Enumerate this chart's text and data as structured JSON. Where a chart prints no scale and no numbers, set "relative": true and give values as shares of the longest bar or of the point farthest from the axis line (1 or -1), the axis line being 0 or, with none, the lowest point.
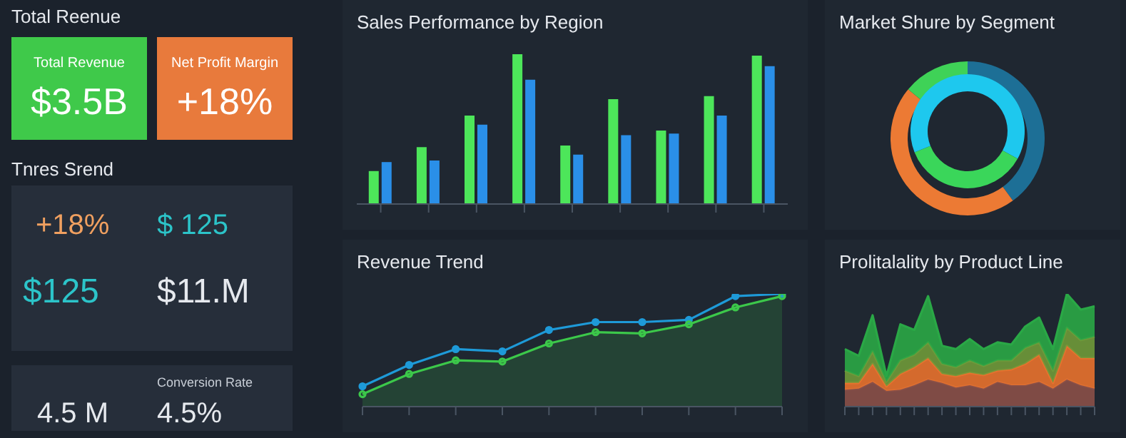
{
  "chart_data": [
    {
      "type": "other",
      "title": "Total Reenue",
      "annotations": [
        "Total Revenue",
        "$3.5B",
        "Net Profit Margin",
        "+18%",
        "Tnres Srend",
        "+18%",
        "$ 125",
        "$125",
        "$11.M",
        "4.5 M",
        "Conversion Rate",
        "4.5%"
      ]
    },
    {
      "type": "bar",
      "title": "Sales Performance by Region",
      "relative": true,
      "categories": [
        null,
        null,
        null,
        null,
        null,
        null,
        null,
        null,
        null
      ],
      "series": [
        {
          "color": "#4de65a",
          "values": [
            0.22,
            0.38,
            0.59,
            1,
            0.39,
            0.7,
            0.49,
            0.72,
            0.99
          ]
        },
        {
          "color": "#2a8fe8",
          "values": [
            0.28,
            0.29,
            0.53,
            0.83,
            0.33,
            0.46,
            0.47,
            0.59,
            0.92
          ]
        }
      ]
    },
    {
      "type": "donut",
      "title": "Market Shure by Segment",
      "categories": [
        null,
        null,
        null
      ],
      "values": [
        40,
        46,
        14
      ],
      "colors": [
        "#1d6f96",
        "#ec7a34",
        "#3fd257"
      ]
    },
    {
      "type": "donut",
      "categories": [
        null,
        null,
        null
      ],
      "values": [
        33,
        36,
        31
      ],
      "colors": [
        "#1ec8ee",
        "#3ad65a",
        "#1ec8ee"
      ]
    },
    {
      "type": "line",
      "title": "Revenue Trend",
      "relative": true,
      "marker": "circle",
      "categories": [
        null,
        null,
        null,
        null,
        null,
        null,
        null,
        null,
        null,
        null
      ],
      "series": [
        {
          "color": "#1e9ad8",
          "values": [
            0.18,
            0.37,
            0.51,
            0.49,
            0.68,
            0.75,
            0.75,
            0.77,
            0.98,
            1
          ]
        },
        {
          "type": "area",
          "color": "#3cc84a",
          "values": [
            0.11,
            0.29,
            0.41,
            0.4,
            0.56,
            0.66,
            0.65,
            0.73,
            0.88,
            0.98
          ]
        }
      ]
    },
    {
      "type": "area",
      "title": "Prolitalality by Product Line",
      "relative": true,
      "stacked": true,
      "categories": [
        null,
        null,
        null,
        null,
        null,
        null,
        null,
        null,
        null,
        null,
        null,
        null,
        null,
        null,
        null,
        null,
        null,
        null,
        null
      ],
      "series": [
        {
          "color": "#8a5048",
          "values": [
            0.15,
            0.16,
            0.22,
            0.14,
            0.15,
            0.19,
            0.24,
            0.21,
            0.17,
            0.19,
            0.16,
            0.22,
            0.19,
            0.19,
            0.22,
            0.16,
            0.24,
            0.19,
            0.16
          ]
        },
        {
          "color": "#e8722e",
          "values": [
            0.06,
            0.05,
            0.16,
            0.04,
            0.14,
            0.16,
            0.19,
            0.08,
            0.1,
            0.11,
            0.12,
            0.1,
            0.14,
            0.19,
            0.24,
            0.05,
            0.3,
            0.24,
            0.27
          ]
        },
        {
          "color": "#6f9a3a",
          "values": [
            0.11,
            0.06,
            0.11,
            0.04,
            0.12,
            0.11,
            0.14,
            0.09,
            0.08,
            0.11,
            0.08,
            0.09,
            0.08,
            0.14,
            0.11,
            0.11,
            0.16,
            0.16,
            0.19
          ]
        },
        {
          "color": "#2aa846",
          "values": [
            0.19,
            0.18,
            0.32,
            0.05,
            0.32,
            0.22,
            0.41,
            0.16,
            0.16,
            0.19,
            0.15,
            0.16,
            0.14,
            0.19,
            0.22,
            0.19,
            0.3,
            0.27,
            0.27
          ]
        }
      ]
    }
  ]
}
